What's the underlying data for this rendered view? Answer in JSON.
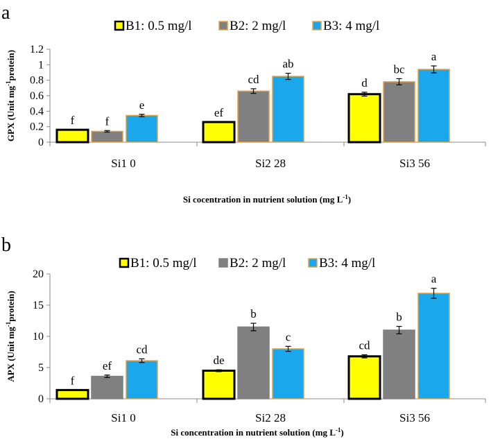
{
  "chart_data": [
    {
      "panel": "a",
      "type": "bar",
      "ylabel": "GPX (Unit mg-1protein)",
      "ylabel_main": "GPX (Unit mg",
      "ylabel_sup": "-1",
      "ylabel_tail": "protein)",
      "xlabel": "Si cocentration in nutrient solution (mg L-1)",
      "xlabel_main": "Si cocentration in nutrient solution (mg L",
      "xlabel_sup": "-1",
      "xlabel_tail": ")",
      "ylim": [
        0,
        1.2
      ],
      "yticks": [
        "0",
        "0.2",
        "0.4",
        "0.6",
        "0.8",
        "1",
        "1.2"
      ],
      "categories": [
        "Si1 0",
        "Si2 28",
        "Si3 56"
      ],
      "series": [
        {
          "name": "B1: 0.5 mg/l",
          "color": "#ffff00",
          "border": "#000000",
          "values": [
            0.16,
            0.26,
            0.62
          ],
          "errors": [
            0,
            0,
            0.025
          ],
          "letters": [
            "f",
            "ef",
            "d"
          ]
        },
        {
          "name": "B2: 2 mg/l",
          "color": "#808080",
          "border": "#e8a040",
          "values": [
            0.14,
            0.66,
            0.78
          ],
          "errors": [
            0.01,
            0.03,
            0.04
          ],
          "letters": [
            "f",
            "cd",
            "bc"
          ]
        },
        {
          "name": "B3: 4 mg/l",
          "color": "#1aa7ec",
          "border": "#e8a040",
          "values": [
            0.345,
            0.85,
            0.94
          ],
          "errors": [
            0.015,
            0.04,
            0.045
          ],
          "letters": [
            "e",
            "ab",
            "a"
          ]
        }
      ]
    },
    {
      "panel": "b",
      "type": "bar",
      "ylabel": "APX (Unit mg-1protein)",
      "ylabel_main": "APX (Unit mg",
      "ylabel_sup": "-1",
      "ylabel_tail": "protein)",
      "xlabel": "Si concentration in nutrient solution (mg L-1)",
      "xlabel_main": "Si concentration in nutrient solution (mg L",
      "xlabel_sup": "-1",
      "xlabel_tail": ")",
      "ylim": [
        0,
        20
      ],
      "yticks": [
        "0",
        "5",
        "10",
        "15",
        "20"
      ],
      "categories": [
        "Si1 0",
        "Si2 28",
        "Si3 56"
      ],
      "series": [
        {
          "name": "B1: 0.5 mg/l",
          "color": "#ffff00",
          "border": "#000000",
          "values": [
            1.4,
            4.5,
            6.8
          ],
          "errors": [
            0,
            0.15,
            0.25
          ],
          "letters": [
            "f",
            "de",
            "cd"
          ]
        },
        {
          "name": "B2: 2 mg/l",
          "color": "#808080",
          "border": "#808080",
          "values": [
            3.6,
            11.5,
            11.0
          ],
          "errors": [
            0.2,
            0.6,
            0.6
          ],
          "letters": [
            "ef",
            "b",
            "b"
          ]
        },
        {
          "name": "B3: 4 mg/l",
          "color": "#1aa7ec",
          "border": "#e8a040",
          "values": [
            6.1,
            8.0,
            16.9
          ],
          "errors": [
            0.3,
            0.4,
            0.8
          ],
          "letters": [
            "cd",
            "c",
            "a"
          ]
        }
      ]
    }
  ]
}
